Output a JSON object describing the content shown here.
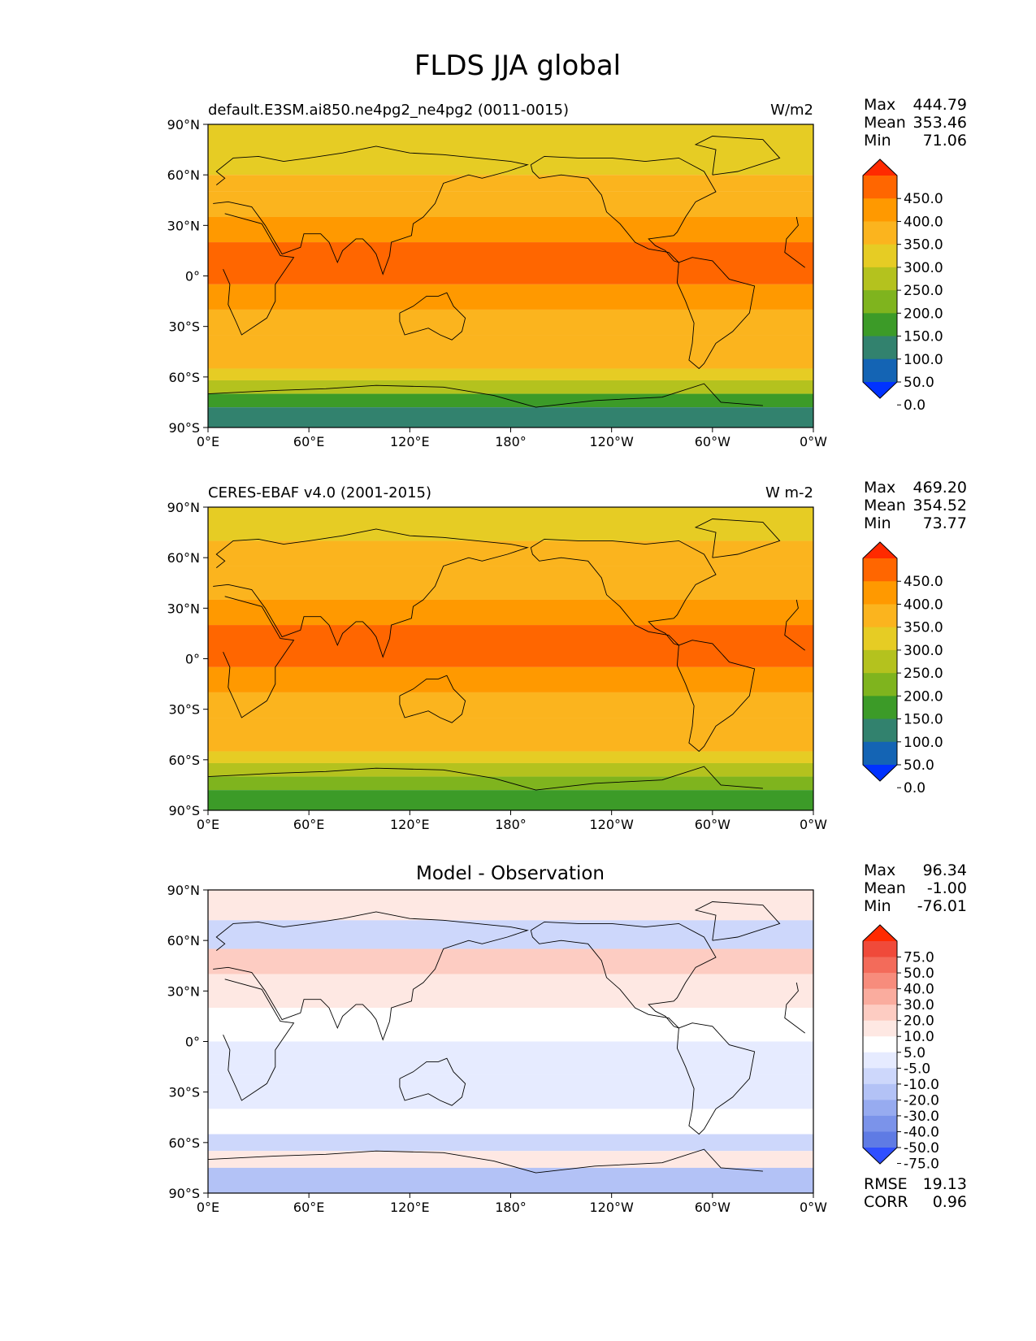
{
  "figure": {
    "title": "FLDS JJA global"
  },
  "chart_data": [
    {
      "type": "heatmap",
      "panel": "test",
      "title": "default.E3SM.ai850.ne4pg2_ne4pg2 (0011-0015)",
      "units": "W/m2",
      "x_ticks": [
        "0°E",
        "60°E",
        "120°E",
        "180°",
        "120°W",
        "60°W",
        "0°W"
      ],
      "y_ticks": [
        "90°N",
        "60°N",
        "30°N",
        "0°",
        "30°S",
        "60°S",
        "90°S"
      ],
      "xlim": [
        0,
        360
      ],
      "ylim": [
        -90,
        90
      ],
      "stats": [
        {
          "label": "Max",
          "value": "444.79"
        },
        {
          "label": "Mean",
          "value": "353.46"
        },
        {
          "label": "Min",
          "value": "71.06"
        }
      ],
      "colorbar": {
        "labels": [
          "450.0",
          "400.0",
          "350.0",
          "300.0",
          "250.0",
          "200.0",
          "150.0",
          "100.0",
          "50.0",
          "0.0"
        ],
        "colors": [
          "#ff2a00",
          "#ff6600",
          "#ff9900",
          "#fbb41e",
          "#e6cc24",
          "#b4c21e",
          "#7fb41e",
          "#3c9b28",
          "#32826e",
          "#1464b4",
          "#0032ff"
        ]
      },
      "zonal_bands": [
        {
          "lat": [
            60,
            90
          ],
          "value": 280
        },
        {
          "lat": [
            50,
            60
          ],
          "value": 310
        },
        {
          "lat": [
            35,
            50
          ],
          "value": 340
        },
        {
          "lat": [
            20,
            35
          ],
          "value": 370
        },
        {
          "lat": [
            -5,
            20
          ],
          "value": 410
        },
        {
          "lat": [
            -20,
            -5
          ],
          "value": 370
        },
        {
          "lat": [
            -35,
            -20
          ],
          "value": 340
        },
        {
          "lat": [
            -55,
            -35
          ],
          "value": 310
        },
        {
          "lat": [
            -62,
            -55
          ],
          "value": 270
        },
        {
          "lat": [
            -70,
            -62
          ],
          "value": 220
        },
        {
          "lat": [
            -78,
            -70
          ],
          "value": 140
        },
        {
          "lat": [
            -90,
            -78
          ],
          "value": 90
        }
      ]
    },
    {
      "type": "heatmap",
      "panel": "reference",
      "title": "CERES-EBAF v4.0 (2001-2015)",
      "units": "W m-2",
      "x_ticks": [
        "0°E",
        "60°E",
        "120°E",
        "180°",
        "120°W",
        "60°W",
        "0°W"
      ],
      "y_ticks": [
        "90°N",
        "60°N",
        "30°N",
        "0°",
        "30°S",
        "60°S",
        "90°S"
      ],
      "xlim": [
        0,
        360
      ],
      "ylim": [
        -90,
        90
      ],
      "stats": [
        {
          "label": "Max",
          "value": "469.20"
        },
        {
          "label": "Mean",
          "value": "354.52"
        },
        {
          "label": "Min",
          "value": "73.77"
        }
      ],
      "colorbar": {
        "labels": [
          "450.0",
          "400.0",
          "350.0",
          "300.0",
          "250.0",
          "200.0",
          "150.0",
          "100.0",
          "50.0",
          "0.0"
        ],
        "colors": [
          "#ff2a00",
          "#ff6600",
          "#ff9900",
          "#fbb41e",
          "#e6cc24",
          "#b4c21e",
          "#7fb41e",
          "#3c9b28",
          "#32826e",
          "#1464b4",
          "#0032ff"
        ]
      },
      "zonal_bands": [
        {
          "lat": [
            70,
            90
          ],
          "value": 270
        },
        {
          "lat": [
            55,
            70
          ],
          "value": 310
        },
        {
          "lat": [
            35,
            55
          ],
          "value": 345
        },
        {
          "lat": [
            20,
            35
          ],
          "value": 375
        },
        {
          "lat": [
            -5,
            20
          ],
          "value": 415
        },
        {
          "lat": [
            -20,
            -5
          ],
          "value": 370
        },
        {
          "lat": [
            -35,
            -20
          ],
          "value": 340
        },
        {
          "lat": [
            -55,
            -35
          ],
          "value": 305
        },
        {
          "lat": [
            -62,
            -55
          ],
          "value": 265
        },
        {
          "lat": [
            -70,
            -62
          ],
          "value": 220
        },
        {
          "lat": [
            -78,
            -70
          ],
          "value": 160
        },
        {
          "lat": [
            -90,
            -78
          ],
          "value": 110
        }
      ]
    },
    {
      "type": "heatmap",
      "panel": "difference",
      "title": "Model - Observation",
      "units": "",
      "x_ticks": [
        "0°E",
        "60°E",
        "120°E",
        "180°",
        "120°W",
        "60°W",
        "0°W"
      ],
      "y_ticks": [
        "90°N",
        "60°N",
        "30°N",
        "0°",
        "30°S",
        "60°S",
        "90°S"
      ],
      "xlim": [
        0,
        360
      ],
      "ylim": [
        -90,
        90
      ],
      "stats": [
        {
          "label": "Max",
          "value": "96.34"
        },
        {
          "label": "Mean",
          "value": "-1.00"
        },
        {
          "label": "Min",
          "value": "-76.01"
        }
      ],
      "bottom_stats": [
        {
          "label": "RMSE",
          "value": "19.13"
        },
        {
          "label": "CORR",
          "value": "0.96"
        }
      ],
      "colorbar": {
        "labels": [
          "75.0",
          "50.0",
          "40.0",
          "30.0",
          "20.0",
          "10.0",
          "5.0",
          "-5.0",
          "-10.0",
          "-20.0",
          "-30.0",
          "-40.0",
          "-50.0",
          "-75.0"
        ],
        "colors": [
          "#ff2a00",
          "#f04a3a",
          "#f36b5a",
          "#f78c7c",
          "#faac9e",
          "#fdccc2",
          "#fee8e3",
          "#ffffff",
          "#e6ebff",
          "#cdd7fb",
          "#b3c2f6",
          "#97abf0",
          "#7b93ea",
          "#5f7be4",
          "#2f4fff"
        ]
      },
      "zonal_bands": [
        {
          "lat": [
            72,
            90
          ],
          "value": 8
        },
        {
          "lat": [
            55,
            72
          ],
          "value": -12
        },
        {
          "lat": [
            40,
            55
          ],
          "value": 12
        },
        {
          "lat": [
            20,
            40
          ],
          "value": 6
        },
        {
          "lat": [
            0,
            20
          ],
          "value": -3
        },
        {
          "lat": [
            -20,
            0
          ],
          "value": -8
        },
        {
          "lat": [
            -40,
            -20
          ],
          "value": -6
        },
        {
          "lat": [
            -55,
            -40
          ],
          "value": 0
        },
        {
          "lat": [
            -65,
            -55
          ],
          "value": -14
        },
        {
          "lat": [
            -75,
            -65
          ],
          "value": 6
        },
        {
          "lat": [
            -90,
            -75
          ],
          "value": -22
        }
      ]
    }
  ]
}
